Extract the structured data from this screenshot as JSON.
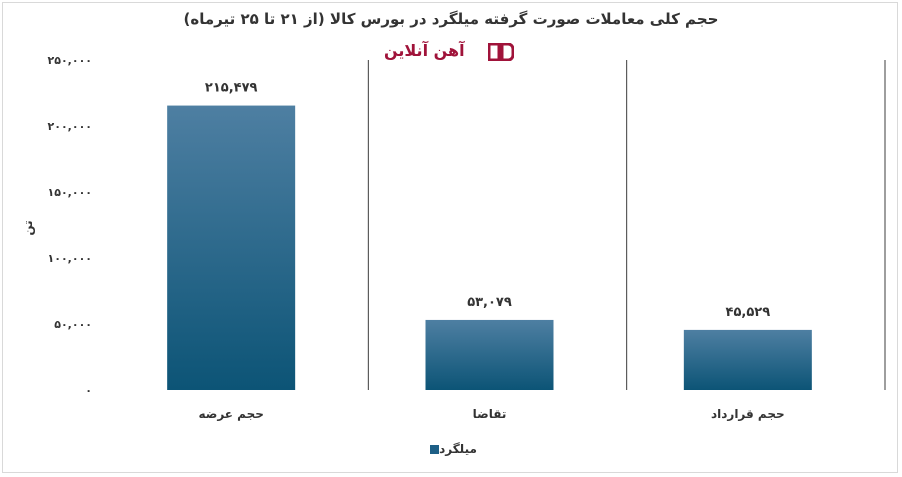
{
  "chart_data": {
    "type": "bar",
    "title": "حجم کلی معاملات صورت گرفته میلگرد در بورس کالا (از ۲۱ تا ۲۵ تیرماه)",
    "xlabel": "",
    "ylabel": "تن",
    "categories": [
      "حجم عرضه",
      "تقاضا",
      "حجم قرارداد"
    ],
    "series": [
      {
        "name": "میلگرد",
        "values": [
          215479,
          53079,
          45529
        ],
        "labels": [
          "۲۱۵,۴۷۹",
          "۵۳,۰۷۹",
          "۴۵,۵۲۹"
        ]
      }
    ],
    "ylim": [
      0,
      250000
    ],
    "yticks": [
      0,
      50000,
      100000,
      150000,
      200000,
      250000
    ],
    "ytick_labels": [
      "۰",
      "۵۰,۰۰۰",
      "۱۰۰,۰۰۰",
      "۱۵۰,۰۰۰",
      "۲۰۰,۰۰۰",
      "۲۵۰,۰۰۰"
    ],
    "grid": false,
    "legend": "bottom",
    "colors": {
      "bar_top": "#4e7fa2",
      "bar_bottom": "#0c5476",
      "separator": "#3c3c3c"
    }
  },
  "watermark": {
    "text": "آهن آنلاین",
    "color": "#a0133a"
  }
}
